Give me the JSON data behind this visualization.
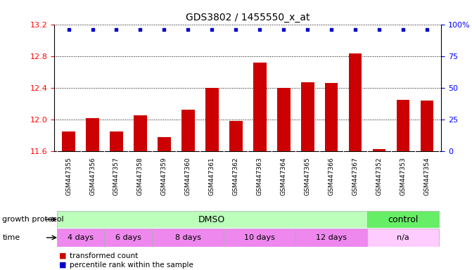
{
  "title": "GDS3802 / 1455550_x_at",
  "samples": [
    "GSM447355",
    "GSM447356",
    "GSM447357",
    "GSM447358",
    "GSM447359",
    "GSM447360",
    "GSM447361",
    "GSM447362",
    "GSM447363",
    "GSM447364",
    "GSM447365",
    "GSM447366",
    "GSM447367",
    "GSM447352",
    "GSM447353",
    "GSM447354"
  ],
  "red_values": [
    11.85,
    12.02,
    11.85,
    12.05,
    11.78,
    12.12,
    12.4,
    11.98,
    12.72,
    12.4,
    12.47,
    12.46,
    12.83,
    11.63,
    12.25,
    12.24
  ],
  "ylim_left": [
    11.6,
    13.2
  ],
  "ylim_right": [
    0,
    100
  ],
  "yticks_left": [
    11.6,
    12.0,
    12.4,
    12.8,
    13.2
  ],
  "yticks_right": [
    0,
    25,
    50,
    75,
    100
  ],
  "bar_color": "#cc0000",
  "marker_color": "#0000cc",
  "bg_color": "#ffffff",
  "title_fontsize": 10,
  "growth_protocol_label": "growth protocol",
  "time_label": "time",
  "dmso_color": "#bbffbb",
  "control_color": "#66ee66",
  "time_color": "#ee88ee",
  "na_color": "#ffccff",
  "legend_red_label": "transformed count",
  "legend_blue_label": "percentile rank within the sample",
  "time_groups": [
    {
      "label": "4 days",
      "start": 0,
      "end": 1
    },
    {
      "label": "6 days",
      "start": 2,
      "end": 3
    },
    {
      "label": "8 days",
      "start": 4,
      "end": 6
    },
    {
      "label": "10 days",
      "start": 7,
      "end": 9
    },
    {
      "label": "12 days",
      "start": 10,
      "end": 12
    },
    {
      "label": "n/a",
      "start": 13,
      "end": 15
    }
  ]
}
